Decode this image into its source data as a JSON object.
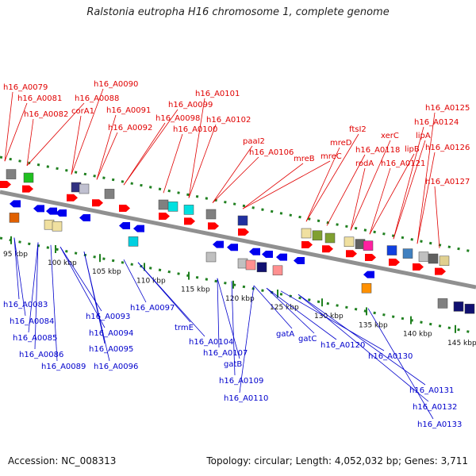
{
  "title": "Ralstonia eutropha H16 chromosome 1, complete genome",
  "footer": {
    "accession": "Accession: NC_008313",
    "summary": "Topology: circular; Length: 4,052,032 bp; Genes: 3,711"
  },
  "colors": {
    "forward_label": "#e00000",
    "reverse_label": "#0000cc",
    "backbone": "#909090",
    "tick": "#208020"
  },
  "scale": {
    "unit": "kbp",
    "ticks": [
      "95 kbp",
      "100 kbp",
      "105 kbp",
      "110 kbp",
      "115 kbp",
      "120 kbp",
      "125 kbp",
      "130 kbp",
      "135 kbp",
      "140 kbp",
      "145 kbp"
    ]
  },
  "forward_genes": [
    "h16_A0079",
    "h16_A0081",
    "h16_A0082",
    "h16_A0088",
    "h16_A0090",
    "corA1",
    "h16_A0091",
    "h16_A0092",
    "h16_A0098",
    "h16_A0099",
    "h16_A0100",
    "h16_A0101",
    "h16_A0102",
    "paaI2",
    "h16_A0106",
    "mreB",
    "mreC",
    "mreD",
    "ftsI2",
    "h16_A0118",
    "rodA",
    "xerC",
    "h16_A0121",
    "lipB",
    "lipA",
    "h16_A0124",
    "h16_A0125",
    "h16_A0126",
    "h16_A0127"
  ],
  "reverse_genes": [
    "h16_A0083",
    "h16_A0084",
    "h16_A0085",
    "h16_A0086",
    "h16_A0089",
    "h16_A0093",
    "h16_A0094",
    "h16_A0095",
    "h16_A0096",
    "h16_A0097",
    "trmE",
    "h16_A0104",
    "h16_A0107",
    "gatB",
    "h16_A0109",
    "h16_A0110",
    "gatA",
    "gatC",
    "h16_A0120",
    "h16_A0130",
    "h16_A0131",
    "h16_A0132",
    "h16_A0133"
  ]
}
